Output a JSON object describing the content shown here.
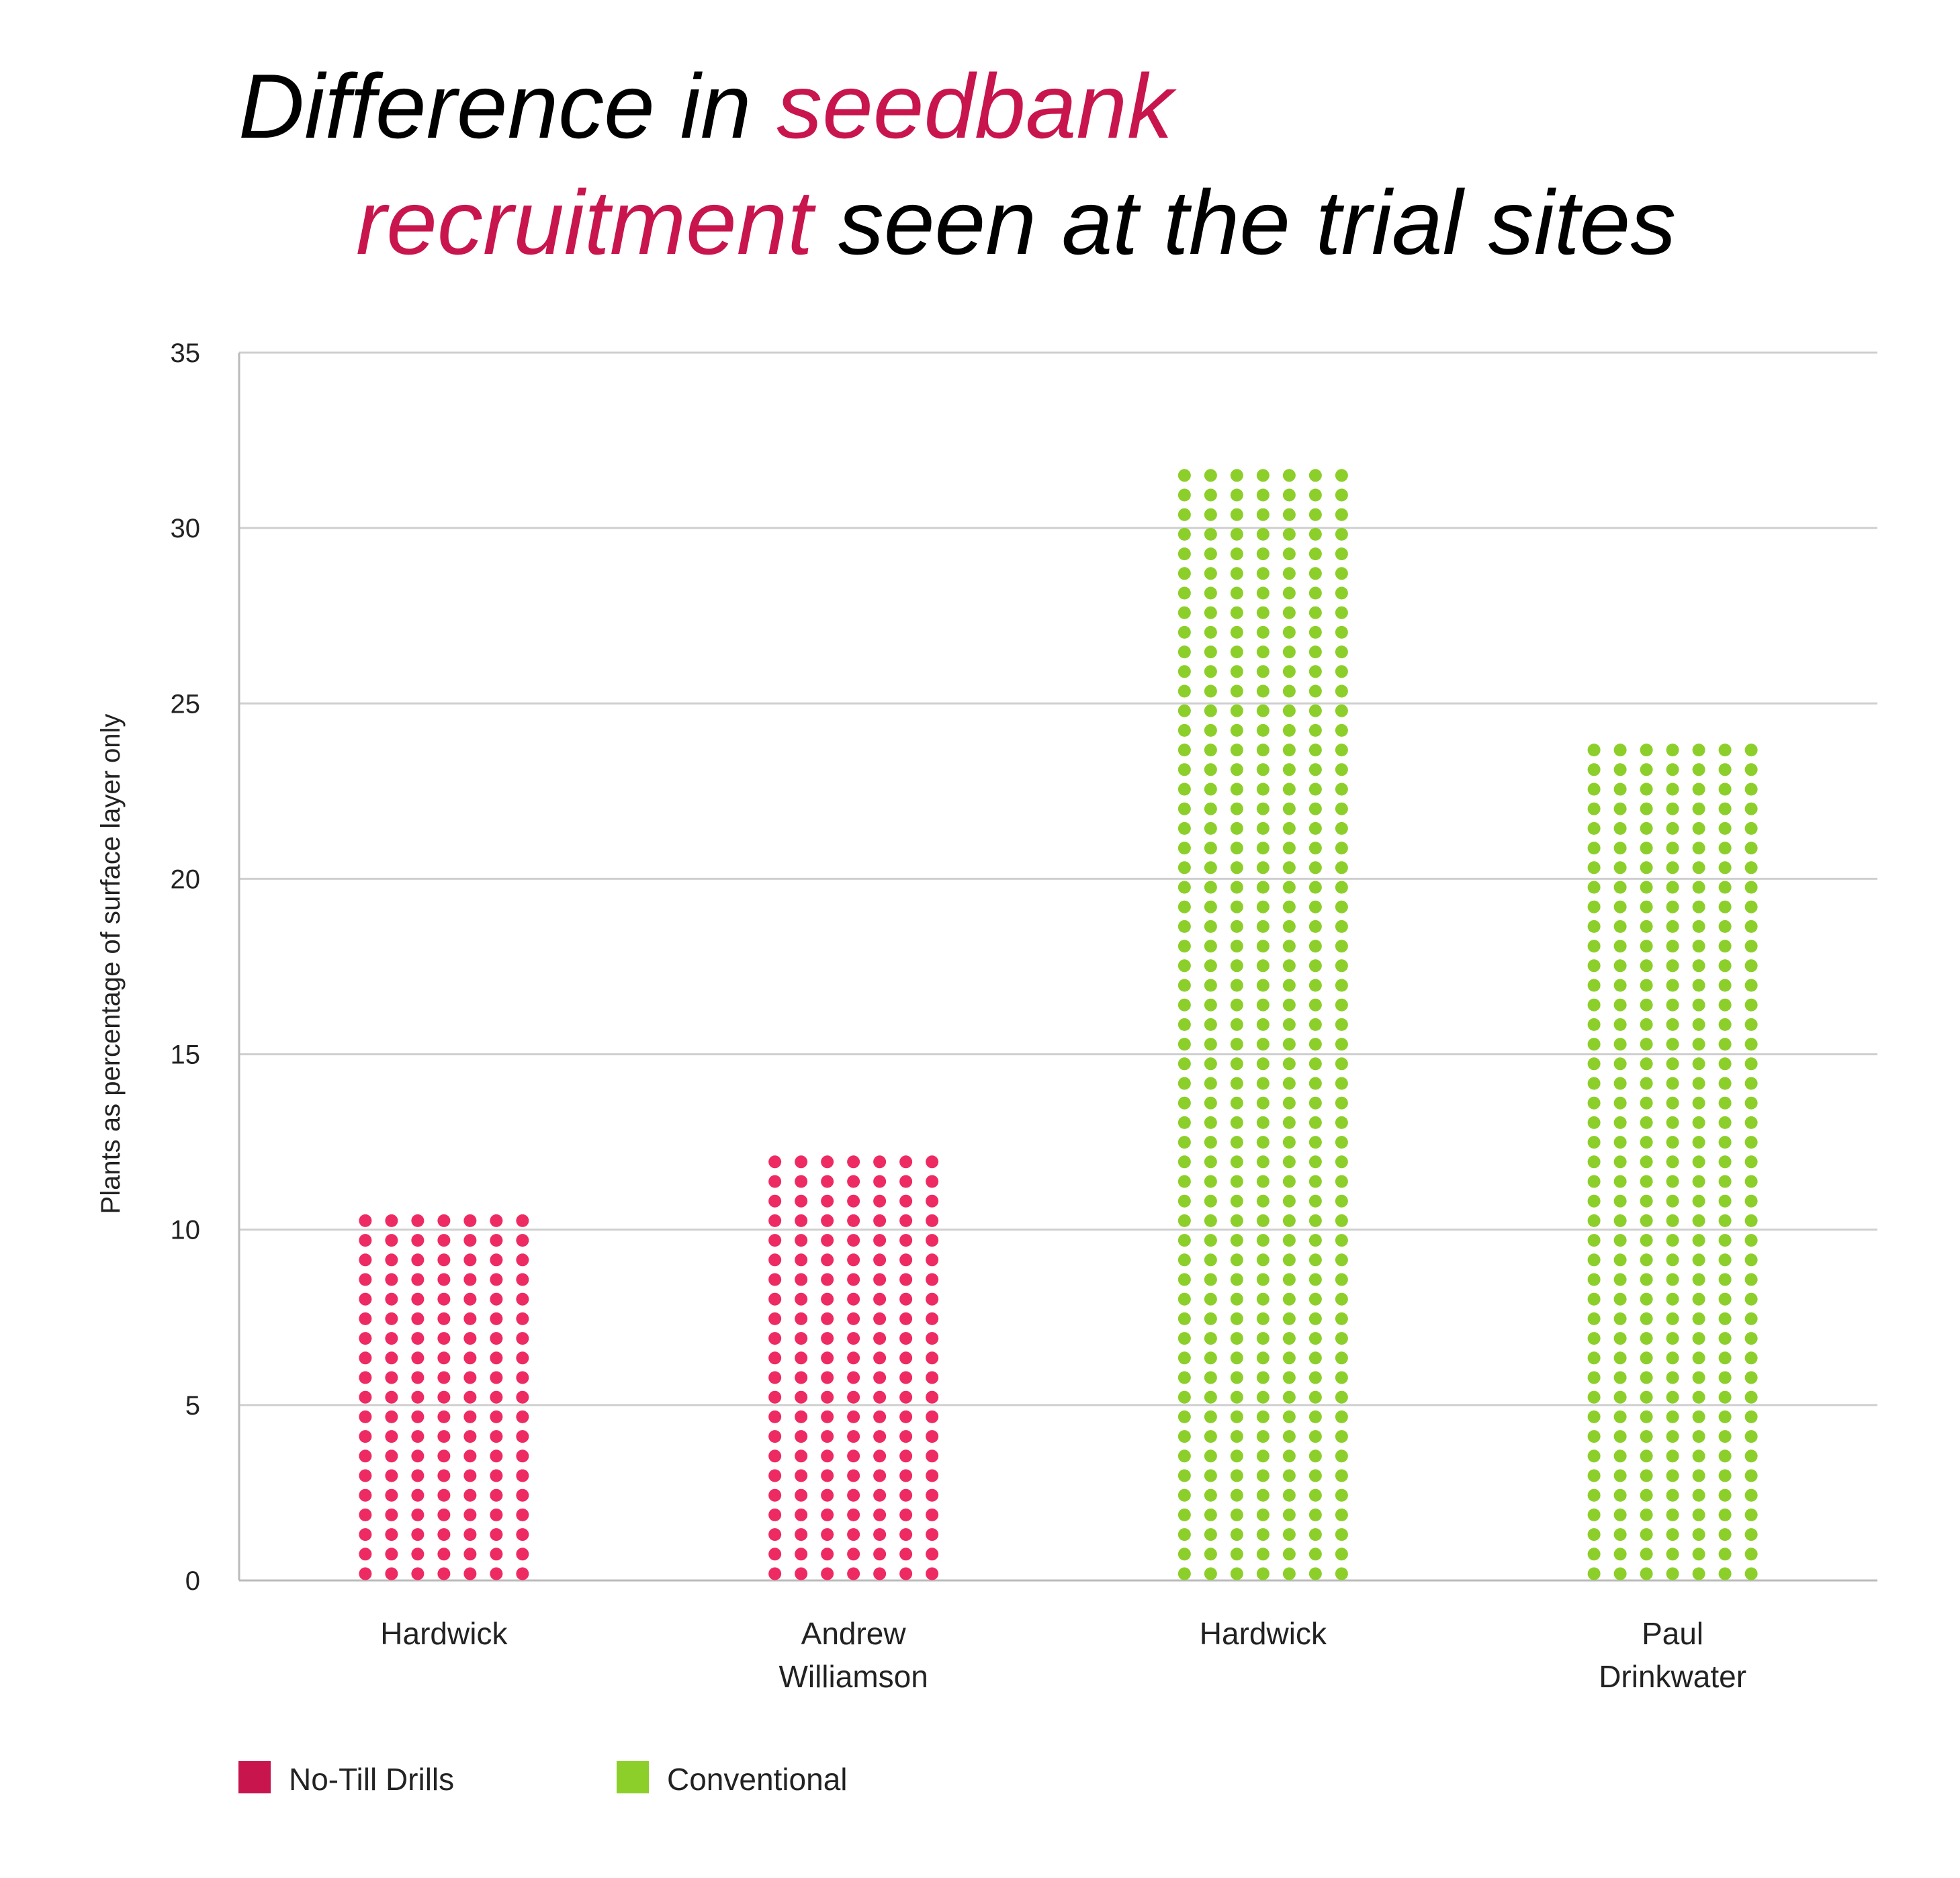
{
  "chart_data": {
    "type": "bar",
    "title_parts": [
      {
        "text": "Difference in ",
        "color": "#000000"
      },
      {
        "text": "seedbank",
        "color": "#c8154e"
      },
      {
        "text": "recruitment",
        "color": "#c8154e"
      },
      {
        "text": " seen at the trial sites",
        "color": "#000000"
      }
    ],
    "ylabel": "Plants as percentage of surface layer only",
    "ylim": [
      0,
      35
    ],
    "yticks": [
      0,
      5,
      10,
      15,
      20,
      25,
      30,
      35
    ],
    "grid": true,
    "categories": [
      {
        "lines": [
          "Hardwick"
        ],
        "series": "No-Till Drills",
        "value": 10.5
      },
      {
        "lines": [
          "Andrew",
          "Williamson"
        ],
        "series": "No-Till Drills",
        "value": 12.2
      },
      {
        "lines": [
          "Hardwick"
        ],
        "series": "Conventional",
        "value": 32.1
      },
      {
        "lines": [
          "Paul",
          "Drinkwater"
        ],
        "series": "Conventional",
        "value": 24.1
      }
    ],
    "legend": {
      "placement": "bottom-left",
      "items": [
        {
          "name": "No-Till Drills",
          "color": "#c8154e"
        },
        {
          "name": "Conventional",
          "color": "#8ccf2a"
        }
      ]
    },
    "dot_colors": {
      "No-Till Drills": "#ee2a63",
      "Conventional": "#8ccf2a"
    }
  }
}
